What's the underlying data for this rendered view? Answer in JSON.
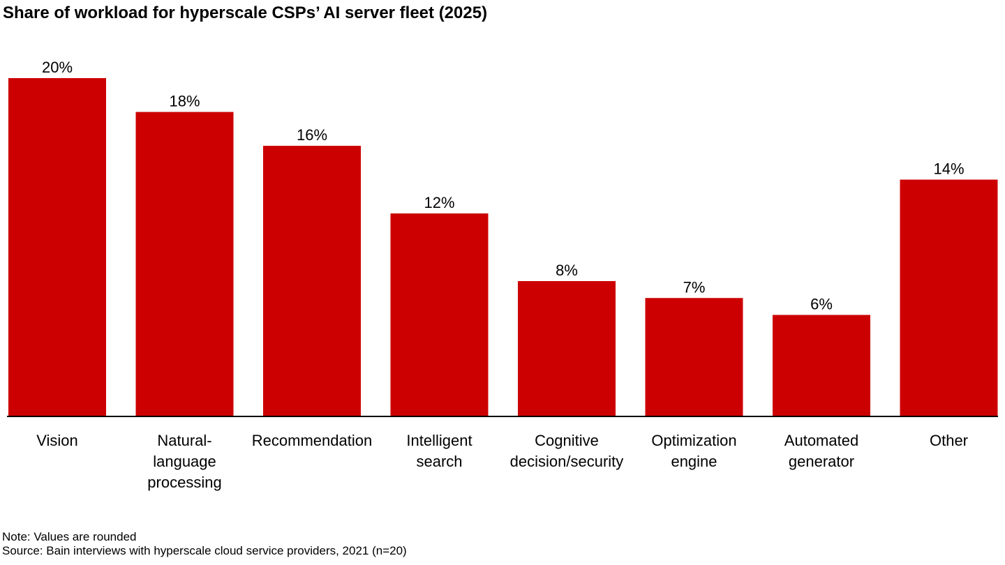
{
  "chart_data": {
    "type": "bar",
    "title": "Share of workload for hyperscale CSPs’ AI server fleet (2025)",
    "categories": [
      "Vision",
      "Natural-language processing",
      "Recommendation",
      "Intelligent search",
      "Cognitive decision/security",
      "Optimization engine",
      "Automated generator",
      "Other"
    ],
    "category_label_lines": [
      [
        "Vision"
      ],
      [
        "Natural-",
        "language",
        "processing"
      ],
      [
        "Recommendation"
      ],
      [
        "Intelligent",
        "search"
      ],
      [
        "Cognitive",
        "decision/security"
      ],
      [
        "Optimization",
        "engine"
      ],
      [
        "Automated",
        "generator"
      ],
      [
        "Other"
      ]
    ],
    "values": [
      20,
      18,
      16,
      12,
      8,
      7,
      6,
      14
    ],
    "data_labels": [
      "20%",
      "18%",
      "16%",
      "12%",
      "8%",
      "7%",
      "6%",
      "14%"
    ],
    "unit": "%",
    "xlabel": "",
    "ylabel": "",
    "ylim": [
      0,
      20
    ],
    "grid": false,
    "legend": "none",
    "bar_color": "#cc0000",
    "axis_color": "#000000"
  },
  "footnotes": {
    "note": "Note: Values are rounded",
    "source": "Source: Bain interviews with hyperscale cloud service providers, 2021 (n=20)"
  }
}
